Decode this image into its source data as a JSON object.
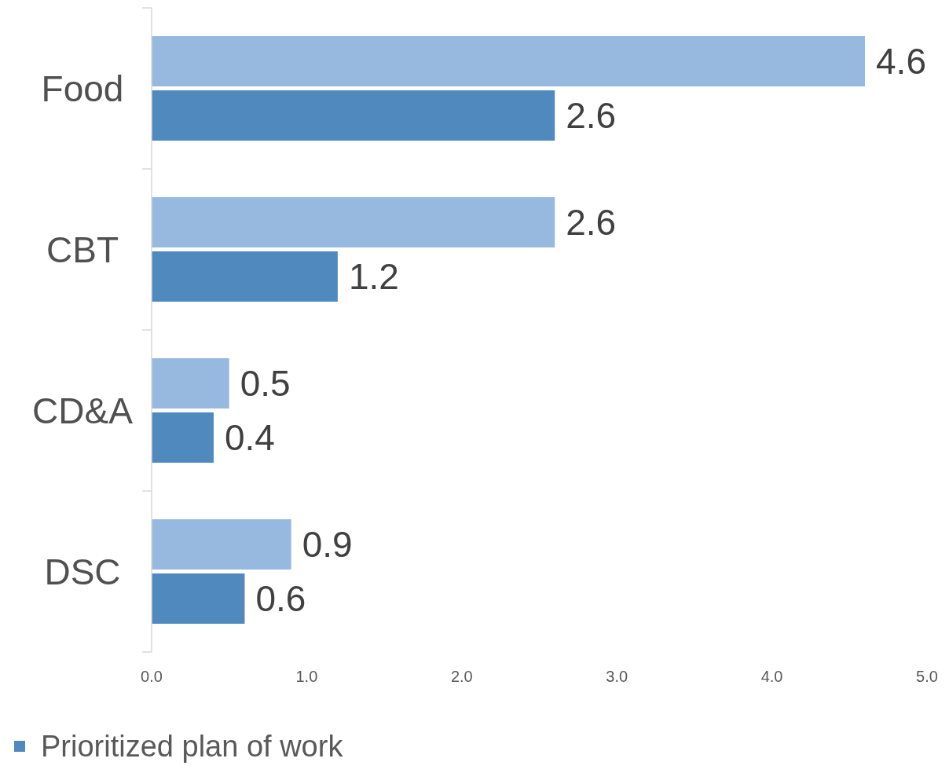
{
  "chart_data": {
    "type": "bar",
    "orientation": "horizontal",
    "categories": [
      "Food",
      "CBT",
      "CD&A",
      "DSC"
    ],
    "series": [
      {
        "color": "#98b9df",
        "values": [
          4.6,
          2.6,
          0.5,
          0.9
        ]
      },
      {
        "name": "Prioritized plan of work",
        "color": "#4f89bd",
        "values": [
          2.6,
          1.2,
          0.4,
          0.6
        ]
      }
    ],
    "xlim": [
      0,
      5
    ],
    "xticks": [
      {
        "value": 0,
        "label": "0.0"
      },
      {
        "value": 1,
        "label": "1.0"
      },
      {
        "value": 2,
        "label": "2.0"
      },
      {
        "value": 3,
        "label": "3.0"
      },
      {
        "value": 4,
        "label": "4.0"
      },
      {
        "value": 5,
        "label": "5.0"
      }
    ],
    "data_labels": true,
    "legend": "bottom left",
    "grid": false
  }
}
